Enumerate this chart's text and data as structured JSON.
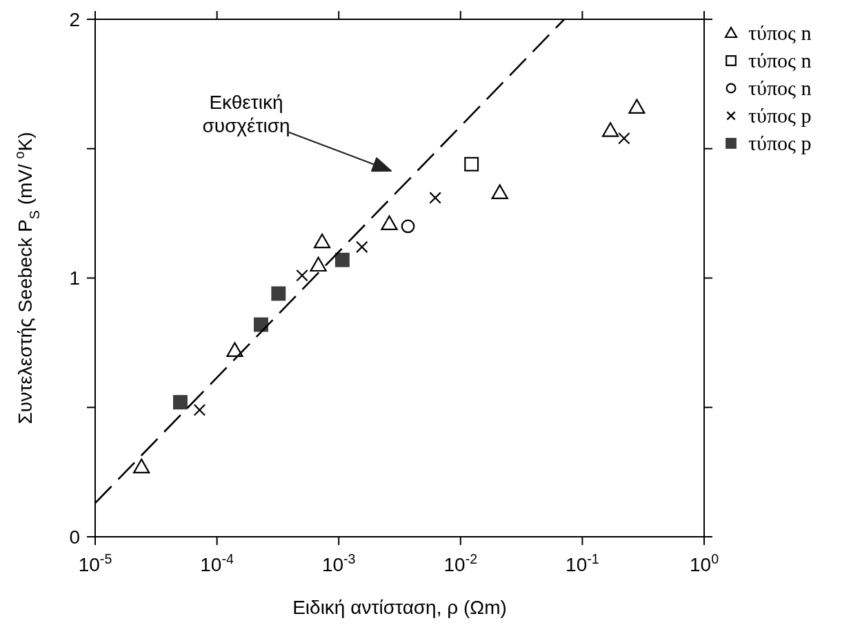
{
  "chart_data": {
    "type": "scatter",
    "xlabel": "Ειδική αντίσταση, ρ (Ωm)",
    "ylabel": "Συντελεστής Seebeck P$_{S}$ (mV/ $^{o}$K)",
    "log": "x",
    "xlim": [
      1e-05,
      1
    ],
    "ylim": [
      0,
      2
    ],
    "xticks": [
      {
        "value": 1e-05,
        "label": "10$^{-5}$"
      },
      {
        "value": 0.0001,
        "label": "10$^{-4}$"
      },
      {
        "value": 0.001,
        "label": "10$^{-3}$"
      },
      {
        "value": 0.01,
        "label": "10$^{-2}$"
      },
      {
        "value": 0.1,
        "label": "10$^{-1}$"
      },
      {
        "value": 1,
        "label": "10$^{0}$"
      }
    ],
    "yticks": [
      0,
      {
        "value": 0.5,
        "label": null
      },
      1,
      {
        "value": 1.5,
        "label": null
      },
      2
    ],
    "grid": false,
    "legend": "right",
    "series": [
      {
        "name": "τύπος n",
        "color": "#000000",
        "marker": "triangle",
        "x": [
          2.4e-05,
          0.00014,
          0.00073,
          0.00068,
          0.0026,
          0.021,
          0.17,
          0.28
        ],
        "values": [
          0.27,
          0.72,
          1.14,
          1.05,
          1.21,
          1.33,
          1.57,
          1.66
        ]
      },
      {
        "name": "τύπος n",
        "color": "#000000",
        "marker": "square",
        "x": [
          0.0123
        ],
        "values": [
          1.44
        ]
      },
      {
        "name": "τύπος n",
        "color": "#000000",
        "marker": "circle",
        "x": [
          0.0037
        ],
        "values": [
          1.2
        ]
      },
      {
        "name": "τύπος p",
        "color": "#000000",
        "marker": "cross",
        "x": [
          7.2e-05,
          0.0005,
          0.00155,
          0.0062,
          0.22
        ],
        "values": [
          0.49,
          1.01,
          1.12,
          1.31,
          1.54
        ]
      },
      {
        "name": "τύπος p",
        "color": "#3c3c3c",
        "marker": "square",
        "x": [
          5e-05,
          0.00023,
          0.00032,
          0.00107
        ],
        "values": [
          0.52,
          0.82,
          0.94,
          1.07
        ]
      },
      {
        "type": "line",
        "color": "#000000",
        "line_style": "dashed",
        "marker": "none",
        "x": [
          1e-05,
          0.071
        ],
        "values": [
          0.13,
          2
        ]
      }
    ],
    "annotations": [
      "Εκθετική συσχέτιση"
    ]
  }
}
